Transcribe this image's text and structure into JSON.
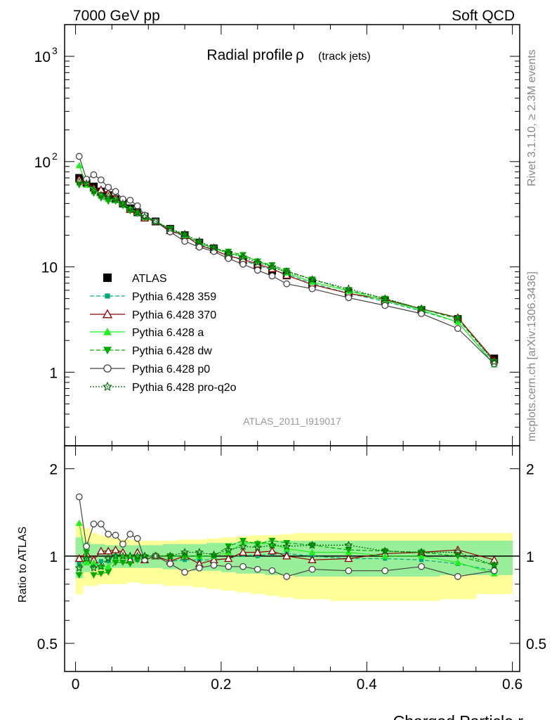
{
  "header": {
    "left": "7000 GeV pp",
    "right": "Soft QCD"
  },
  "side_labels": {
    "rivet": "Rivet 3.1.10, ≥ 2.3M events",
    "source": "mcplots.cern.ch [arXiv:1306.3436]"
  },
  "chart_data": [
    {
      "type": "line",
      "title": "Radial profile",
      "title_symbol": "ρ",
      "title_suffix": "(track jets)",
      "watermark": "ATLAS_2011_I919017",
      "y_log": true,
      "ylim": [
        0.2,
        2000
      ],
      "xlim": [
        -0.015,
        0.61
      ],
      "y_ticks": [
        {
          "value": 1000,
          "base": "10",
          "exp": "3"
        },
        {
          "value": 100,
          "base": "10",
          "exp": "2"
        },
        {
          "value": 10,
          "base": "10",
          "exp": ""
        },
        {
          "value": 1,
          "base": "1",
          "exp": ""
        }
      ],
      "legend_position": "middle-left",
      "series": [
        {
          "name": "ATLAS",
          "color": "#000000",
          "marker": "square-filled",
          "dash": "",
          "show_line": false,
          "x": [
            0.005,
            0.015,
            0.025,
            0.035,
            0.045,
            0.055,
            0.065,
            0.075,
            0.085,
            0.095,
            0.11,
            0.13,
            0.15,
            0.17,
            0.19,
            0.21,
            0.23,
            0.25,
            0.27,
            0.29,
            0.325,
            0.375,
            0.425,
            0.475,
            0.525,
            0.575
          ],
          "y": [
            70,
            63,
            58,
            52,
            48,
            44,
            40,
            36,
            33,
            30,
            27,
            23,
            20,
            17,
            15,
            13,
            11.5,
            10.3,
            9.2,
            8.3,
            7,
            5.7,
            4.8,
            3.9,
            3.2,
            1.35
          ]
        },
        {
          "name": "Pythia 6.428 359",
          "color": "#00aa77",
          "marker": "square-small",
          "dash": "6,3",
          "show_line": true,
          "x": [
            0.005,
            0.015,
            0.025,
            0.035,
            0.045,
            0.055,
            0.065,
            0.075,
            0.085,
            0.095,
            0.11,
            0.13,
            0.15,
            0.17,
            0.19,
            0.21,
            0.23,
            0.25,
            0.27,
            0.29,
            0.325,
            0.375,
            0.425,
            0.475,
            0.525,
            0.575
          ],
          "y": [
            66,
            63,
            54,
            50,
            46,
            44,
            40,
            35,
            32,
            30,
            27,
            22,
            19.5,
            16.5,
            14.5,
            12.7,
            11.6,
            10.3,
            9.4,
            8.5,
            7.0,
            5.6,
            4.7,
            3.8,
            3.0,
            1.2
          ]
        },
        {
          "name": "Pythia 6.428 370",
          "color": "#8b0000",
          "marker": "triangle-open",
          "dash": "",
          "show_line": true,
          "x": [
            0.005,
            0.015,
            0.025,
            0.035,
            0.045,
            0.055,
            0.065,
            0.075,
            0.085,
            0.095,
            0.11,
            0.13,
            0.15,
            0.17,
            0.19,
            0.21,
            0.23,
            0.25,
            0.27,
            0.29,
            0.325,
            0.375,
            0.425,
            0.475,
            0.525,
            0.575
          ],
          "y": [
            68,
            64,
            56,
            54,
            50,
            46,
            41,
            35,
            34,
            29,
            27,
            22,
            20,
            16,
            14.5,
            12.7,
            11.8,
            10.6,
            9.6,
            8.3,
            6.8,
            5.6,
            4.9,
            4.0,
            3.3,
            1.3
          ]
        },
        {
          "name": "Pythia 6.428 a",
          "color": "#22ee22",
          "marker": "triangle-filled",
          "dash": "",
          "show_line": true,
          "x": [
            0.005,
            0.015,
            0.025,
            0.035,
            0.045,
            0.055,
            0.065,
            0.075,
            0.085,
            0.095,
            0.11,
            0.13,
            0.15,
            0.17,
            0.19,
            0.21,
            0.23,
            0.25,
            0.27,
            0.29,
            0.325,
            0.375,
            0.425,
            0.475,
            0.525,
            0.575
          ],
          "y": [
            92,
            60,
            55,
            48,
            44,
            43,
            40,
            36,
            33,
            30,
            27,
            23,
            20,
            17,
            15,
            13.4,
            12.8,
            11.4,
            10.1,
            8.8,
            7.2,
            5.9,
            4.8,
            3.9,
            3.0,
            1.18
          ]
        },
        {
          "name": "Pythia 6.428 dw",
          "color": "#00aa00",
          "marker": "triangle-down",
          "dash": "6,3",
          "show_line": true,
          "x": [
            0.005,
            0.015,
            0.025,
            0.035,
            0.045,
            0.055,
            0.065,
            0.075,
            0.085,
            0.095,
            0.11,
            0.13,
            0.15,
            0.17,
            0.19,
            0.21,
            0.23,
            0.25,
            0.27,
            0.29,
            0.325,
            0.375,
            0.425,
            0.475,
            0.525,
            0.575
          ],
          "y": [
            60,
            65,
            50,
            45,
            42,
            42,
            38,
            34,
            32,
            29,
            27,
            23,
            20,
            17,
            15,
            14,
            13,
            11.3,
            10.4,
            9.2,
            7.6,
            6.0,
            5.0,
            4.0,
            3.2,
            1.25
          ]
        },
        {
          "name": "Pythia 6.428 p0",
          "color": "#444444",
          "marker": "circle-open",
          "dash": "",
          "show_line": true,
          "x": [
            0.005,
            0.015,
            0.025,
            0.035,
            0.045,
            0.055,
            0.065,
            0.075,
            0.085,
            0.095,
            0.11,
            0.13,
            0.15,
            0.17,
            0.19,
            0.21,
            0.23,
            0.25,
            0.27,
            0.29,
            0.325,
            0.375,
            0.425,
            0.475,
            0.525,
            0.575
          ],
          "y": [
            112,
            68,
            75,
            67,
            57,
            52,
            44,
            43,
            38,
            31,
            27,
            21.5,
            17.5,
            15.4,
            14,
            12,
            10.6,
            9.3,
            8.2,
            6.9,
            6.2,
            5.1,
            4.3,
            3.6,
            2.6,
            1.2
          ]
        },
        {
          "name": "Pythia 6.428 pro-q2o",
          "color": "#006400",
          "marker": "star-open",
          "dash": "2,2",
          "show_line": true,
          "x": [
            0.005,
            0.015,
            0.025,
            0.035,
            0.045,
            0.055,
            0.065,
            0.075,
            0.085,
            0.095,
            0.11,
            0.13,
            0.15,
            0.17,
            0.19,
            0.21,
            0.23,
            0.25,
            0.27,
            0.29,
            0.325,
            0.375,
            0.425,
            0.475,
            0.525,
            0.575
          ],
          "y": [
            64,
            62,
            53,
            48,
            47,
            44,
            40,
            36,
            33,
            30,
            27,
            23,
            20.5,
            17.5,
            15.2,
            13.6,
            12.4,
            11.0,
            10.0,
            9.0,
            7.6,
            6.2,
            5.0,
            4.0,
            3.3,
            1.25
          ]
        }
      ]
    },
    {
      "type": "line",
      "ylabel": "Ratio to ATLAS",
      "xlabel": "Charged Particle r",
      "y_log": true,
      "ylim": [
        0.4,
        2.4
      ],
      "xlim": [
        -0.015,
        0.61
      ],
      "y_ticks": [
        {
          "value": 2,
          "label": "2"
        },
        {
          "value": 1,
          "label": "1"
        },
        {
          "value": 0.5,
          "label": "0.5"
        }
      ],
      "x_ticks": [
        {
          "value": 0,
          "label": "0"
        },
        {
          "value": 0.2,
          "label": "0.2"
        },
        {
          "value": 0.4,
          "label": "0.4"
        },
        {
          "value": 0.6,
          "label": "0.6"
        }
      ],
      "bands": {
        "x_edges": [
          0,
          0.01,
          0.02,
          0.03,
          0.04,
          0.05,
          0.06,
          0.07,
          0.08,
          0.09,
          0.1,
          0.12,
          0.14,
          0.16,
          0.18,
          0.2,
          0.22,
          0.24,
          0.26,
          0.28,
          0.3,
          0.35,
          0.4,
          0.45,
          0.5,
          0.55,
          0.6
        ],
        "outer_color": "#ffff99",
        "outer_low": [
          0.74,
          0.79,
          0.79,
          0.8,
          0.8,
          0.8,
          0.8,
          0.81,
          0.81,
          0.8,
          0.8,
          0.79,
          0.79,
          0.78,
          0.77,
          0.76,
          0.75,
          0.74,
          0.73,
          0.72,
          0.71,
          0.7,
          0.7,
          0.7,
          0.71,
          0.74
        ],
        "outer_high": [
          1.3,
          1.25,
          1.2,
          1.18,
          1.16,
          1.15,
          1.14,
          1.14,
          1.13,
          1.13,
          1.13,
          1.13,
          1.14,
          1.14,
          1.15,
          1.16,
          1.17,
          1.18,
          1.18,
          1.19,
          1.2,
          1.2,
          1.2,
          1.2,
          1.2,
          1.2
        ],
        "inner_color": "#99ee99",
        "inner_low": [
          0.84,
          0.88,
          0.9,
          0.9,
          0.9,
          0.91,
          0.91,
          0.91,
          0.91,
          0.91,
          0.91,
          0.9,
          0.9,
          0.89,
          0.89,
          0.88,
          0.87,
          0.87,
          0.86,
          0.86,
          0.85,
          0.85,
          0.85,
          0.85,
          0.86,
          0.86
        ],
        "inner_high": [
          1.16,
          1.12,
          1.1,
          1.1,
          1.09,
          1.09,
          1.09,
          1.09,
          1.09,
          1.09,
          1.09,
          1.1,
          1.1,
          1.1,
          1.11,
          1.11,
          1.12,
          1.12,
          1.13,
          1.13,
          1.13,
          1.13,
          1.13,
          1.13,
          1.13,
          1.13
        ]
      },
      "series": [
        {
          "name": "Pythia 6.428 359",
          "x": [
            0.005,
            0.015,
            0.025,
            0.035,
            0.045,
            0.055,
            0.065,
            0.075,
            0.085,
            0.095,
            0.11,
            0.13,
            0.15,
            0.17,
            0.19,
            0.21,
            0.23,
            0.25,
            0.27,
            0.29,
            0.325,
            0.375,
            0.425,
            0.475,
            0.525,
            0.575
          ],
          "y": [
            0.94,
            1.0,
            0.93,
            0.96,
            0.96,
            1.0,
            1.0,
            0.97,
            0.97,
            1.0,
            1.0,
            0.96,
            0.97,
            0.97,
            0.97,
            0.98,
            1.01,
            1.0,
            1.02,
            1.02,
            1.0,
            0.98,
            0.98,
            0.97,
            0.94,
            0.89
          ]
        },
        {
          "name": "Pythia 6.428 370",
          "x": [
            0.005,
            0.015,
            0.025,
            0.035,
            0.045,
            0.055,
            0.065,
            0.075,
            0.085,
            0.095,
            0.11,
            0.13,
            0.15,
            0.17,
            0.19,
            0.21,
            0.23,
            0.25,
            0.27,
            0.29,
            0.325,
            0.375,
            0.425,
            0.475,
            0.525,
            0.575
          ],
          "y": [
            0.98,
            1.02,
            0.97,
            1.04,
            1.04,
            1.05,
            1.03,
            0.97,
            1.03,
            0.97,
            1.0,
            0.96,
            1.0,
            0.94,
            0.97,
            0.98,
            1.03,
            1.03,
            1.04,
            1.0,
            0.97,
            0.98,
            1.02,
            1.03,
            1.05,
            0.97
          ]
        },
        {
          "name": "Pythia 6.428 a",
          "x": [
            0.005,
            0.015,
            0.025,
            0.035,
            0.045,
            0.055,
            0.065,
            0.075,
            0.085,
            0.095,
            0.11,
            0.13,
            0.15,
            0.17,
            0.19,
            0.21,
            0.23,
            0.25,
            0.27,
            0.29,
            0.325,
            0.375,
            0.425,
            0.475,
            0.525,
            0.575
          ],
          "y": [
            1.3,
            0.95,
            0.95,
            0.92,
            0.92,
            0.98,
            1.0,
            1.0,
            1.0,
            1.0,
            1.0,
            1.0,
            1.0,
            1.0,
            1.0,
            1.03,
            1.11,
            1.11,
            1.1,
            1.06,
            1.03,
            1.03,
            1.0,
            1.0,
            0.95,
            0.87
          ]
        },
        {
          "name": "Pythia 6.428 dw",
          "x": [
            0.005,
            0.015,
            0.025,
            0.035,
            0.045,
            0.055,
            0.065,
            0.075,
            0.085,
            0.095,
            0.11,
            0.13,
            0.15,
            0.17,
            0.19,
            0.21,
            0.23,
            0.25,
            0.27,
            0.29,
            0.325,
            0.375,
            0.425,
            0.475,
            0.525,
            0.575
          ],
          "y": [
            0.86,
            1.03,
            0.86,
            0.87,
            0.88,
            0.95,
            0.95,
            0.94,
            0.97,
            0.97,
            1.0,
            1.0,
            1.0,
            1.0,
            1.0,
            1.08,
            1.13,
            1.1,
            1.13,
            1.11,
            1.09,
            1.05,
            1.04,
            1.03,
            1.0,
            0.93
          ]
        },
        {
          "name": "Pythia 6.428 p0",
          "x": [
            0.005,
            0.015,
            0.025,
            0.035,
            0.045,
            0.055,
            0.065,
            0.075,
            0.085,
            0.095,
            0.11,
            0.13,
            0.15,
            0.17,
            0.19,
            0.21,
            0.23,
            0.25,
            0.27,
            0.29,
            0.325,
            0.375,
            0.425,
            0.475,
            0.525,
            0.575
          ],
          "y": [
            1.6,
            1.08,
            1.29,
            1.29,
            1.19,
            1.18,
            1.1,
            1.19,
            1.15,
            0.97,
            1.0,
            0.94,
            0.88,
            0.91,
            0.93,
            0.92,
            0.92,
            0.9,
            0.89,
            0.85,
            0.9,
            0.89,
            0.89,
            0.92,
            0.85,
            0.89
          ]
        },
        {
          "name": "Pythia 6.428 pro-q2o",
          "x": [
            0.005,
            0.015,
            0.025,
            0.035,
            0.045,
            0.055,
            0.065,
            0.075,
            0.085,
            0.095,
            0.11,
            0.13,
            0.15,
            0.17,
            0.19,
            0.21,
            0.23,
            0.25,
            0.27,
            0.29,
            0.325,
            0.375,
            0.425,
            0.475,
            0.525,
            0.575
          ],
          "y": [
            0.91,
            0.98,
            0.91,
            0.92,
            0.98,
            1.0,
            1.0,
            1.0,
            1.0,
            1.0,
            1.0,
            1.0,
            1.03,
            1.03,
            1.01,
            1.05,
            1.08,
            1.07,
            1.09,
            1.08,
            1.09,
            1.09,
            1.04,
            1.03,
            1.03,
            0.93
          ]
        }
      ]
    }
  ]
}
